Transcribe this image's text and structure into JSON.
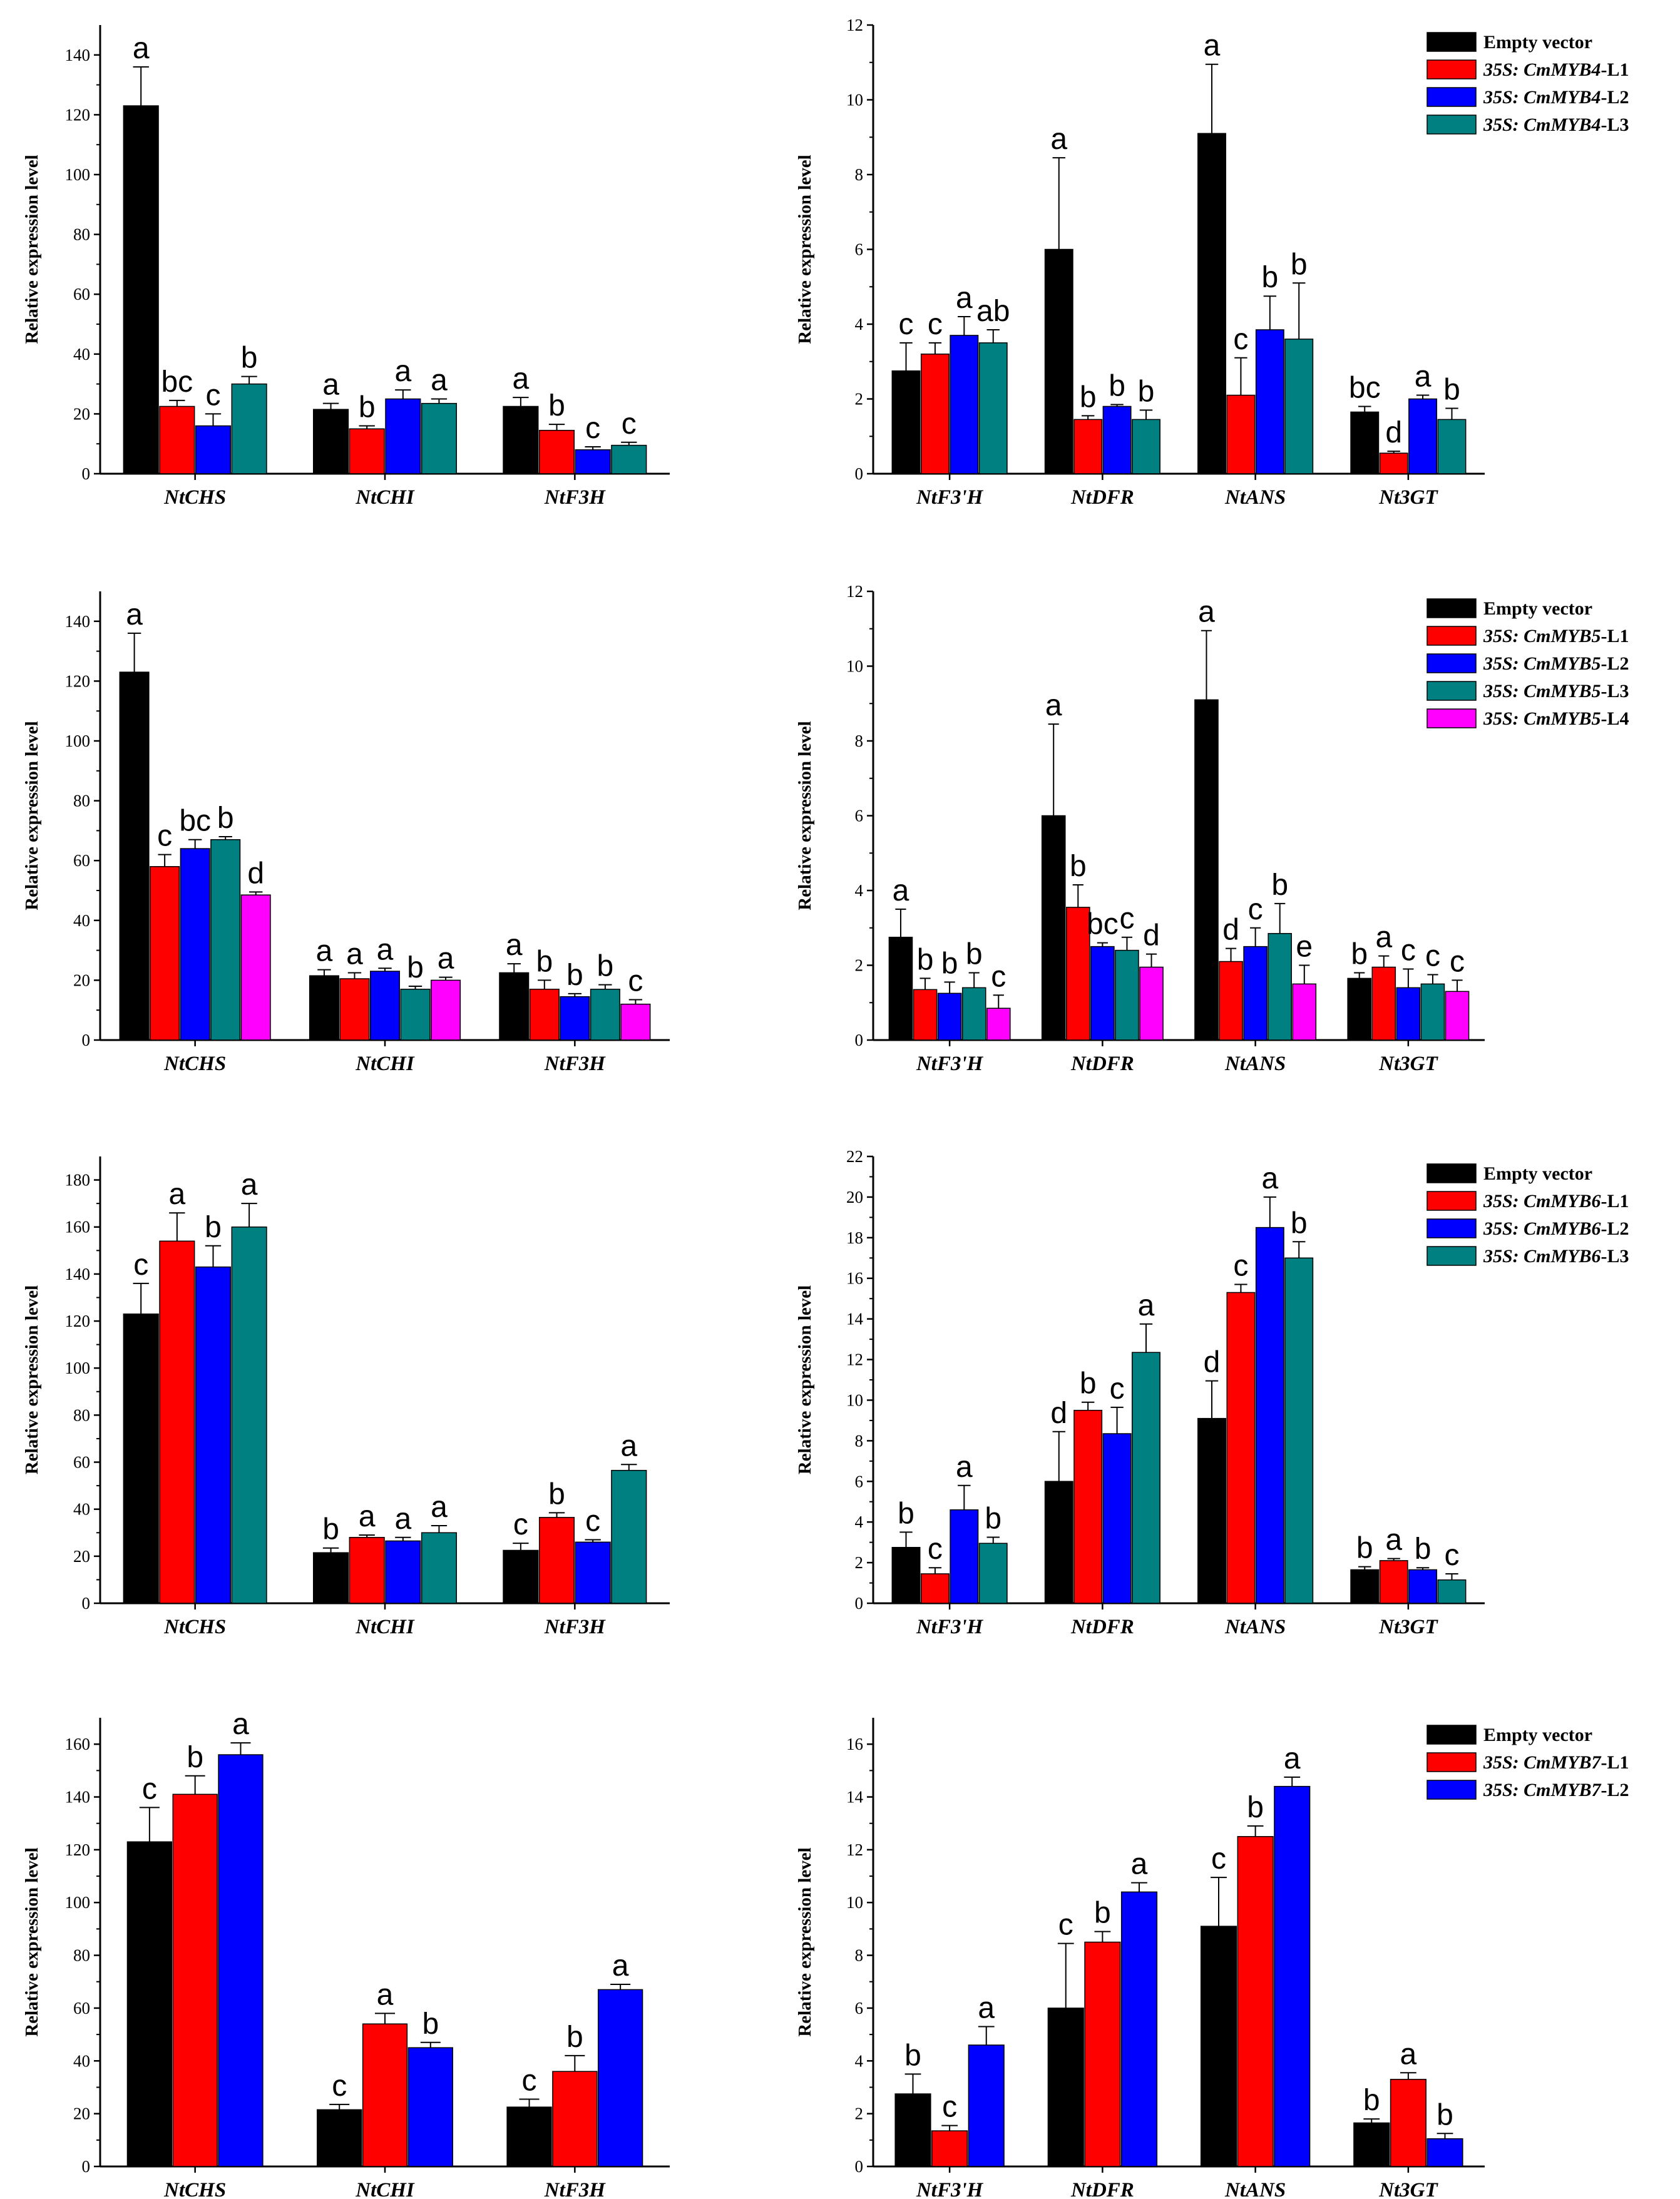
{
  "colors": {
    "empty": "#000000",
    "l1": "#ff0000",
    "l2": "#0000ff",
    "l3": "#008080",
    "l4": "#ff00ff"
  },
  "chart_data": [
    {
      "id": "p1",
      "type": "bar",
      "ylabel": "Relative expression level",
      "ylim": [
        0,
        150
      ],
      "yticks": [
        0,
        20,
        40,
        60,
        80,
        100,
        120,
        140
      ],
      "categories": [
        "NtCHS",
        "NtCHI",
        "NtF3H"
      ],
      "series": [
        {
          "color": "empty",
          "values": [
            123,
            21.5,
            22.5
          ],
          "errors": [
            13,
            2,
            3
          ],
          "letters": [
            "a",
            "a",
            "a"
          ]
        },
        {
          "color": "l1",
          "values": [
            22.5,
            15,
            14.5
          ],
          "errors": [
            2,
            1,
            2
          ],
          "letters": [
            "bc",
            "b",
            "b"
          ]
        },
        {
          "color": "l2",
          "values": [
            16,
            25,
            8
          ],
          "errors": [
            4,
            3,
            1
          ],
          "letters": [
            "c",
            "a",
            "c"
          ]
        },
        {
          "color": "l3",
          "values": [
            30,
            23.5,
            9.5
          ],
          "errors": [
            2.5,
            1.5,
            1
          ],
          "letters": [
            "b",
            "a",
            "c"
          ]
        }
      ]
    },
    {
      "id": "p2",
      "type": "bar",
      "ylabel": "Relative expression level",
      "ylim": [
        0,
        12
      ],
      "yticks": [
        0,
        2,
        4,
        6,
        8,
        10,
        12
      ],
      "categories": [
        "NtF3'H",
        "NtDFR",
        "NtANS",
        "Nt3GT"
      ],
      "series": [
        {
          "color": "empty",
          "values": [
            2.75,
            6.0,
            9.1,
            1.65
          ],
          "errors": [
            0.75,
            2.45,
            1.85,
            0.15
          ],
          "letters": [
            "c",
            "a",
            "a",
            "bc"
          ]
        },
        {
          "color": "l1",
          "values": [
            3.2,
            1.45,
            2.1,
            0.55
          ],
          "errors": [
            0.3,
            0.1,
            1.0,
            0.05
          ],
          "letters": [
            "c",
            "b",
            "c",
            "d"
          ]
        },
        {
          "color": "l2",
          "values": [
            3.7,
            1.8,
            3.85,
            2.0
          ],
          "errors": [
            0.5,
            0.05,
            0.9,
            0.1
          ],
          "letters": [
            "a",
            "b",
            "b",
            "a"
          ]
        },
        {
          "color": "l3",
          "values": [
            3.5,
            1.45,
            3.6,
            1.45
          ],
          "errors": [
            0.35,
            0.25,
            1.5,
            0.3
          ],
          "letters": [
            "ab",
            "b",
            "b",
            "b"
          ]
        }
      ],
      "legend": [
        {
          "color": "empty",
          "plain": "Empty vector"
        },
        {
          "color": "l1",
          "italic": "35S: CmMYB4",
          "plain": "-L1"
        },
        {
          "color": "l2",
          "italic": "35S: CmMYB4",
          "plain": "-L2"
        },
        {
          "color": "l3",
          "italic": "35S: CmMYB4",
          "plain": "-L3"
        }
      ]
    },
    {
      "id": "p3",
      "type": "bar",
      "ylabel": "Relative expression level",
      "ylim": [
        0,
        150
      ],
      "yticks": [
        0,
        20,
        40,
        60,
        80,
        100,
        120,
        140
      ],
      "categories": [
        "NtCHS",
        "NtCHI",
        "NtF3H"
      ],
      "series": [
        {
          "color": "empty",
          "values": [
            123,
            21.5,
            22.5
          ],
          "errors": [
            13,
            2,
            3
          ],
          "letters": [
            "a",
            "a",
            "a"
          ]
        },
        {
          "color": "l1",
          "values": [
            58,
            20.5,
            17
          ],
          "errors": [
            4,
            2,
            3
          ],
          "letters": [
            "c",
            "a",
            "b"
          ]
        },
        {
          "color": "l2",
          "values": [
            64,
            23,
            14.5
          ],
          "errors": [
            3,
            1,
            1
          ],
          "letters": [
            "bc",
            "a",
            "b"
          ]
        },
        {
          "color": "l3",
          "values": [
            67,
            17,
            17
          ],
          "errors": [
            1,
            1,
            1.5
          ],
          "letters": [
            "b",
            "b",
            "b"
          ]
        },
        {
          "color": "l4",
          "values": [
            48.5,
            20,
            12
          ],
          "errors": [
            1,
            1,
            1.5
          ],
          "letters": [
            "d",
            "a",
            "c"
          ]
        }
      ]
    },
    {
      "id": "p4",
      "type": "bar",
      "ylabel": "Relative expression level",
      "ylim": [
        0,
        12
      ],
      "yticks": [
        0,
        2,
        4,
        6,
        8,
        10,
        12
      ],
      "categories": [
        "NtF3'H",
        "NtDFR",
        "NtANS",
        "Nt3GT"
      ],
      "series": [
        {
          "color": "empty",
          "values": [
            2.75,
            6.0,
            9.1,
            1.65
          ],
          "errors": [
            0.75,
            2.45,
            1.85,
            0.15
          ],
          "letters": [
            "a",
            "a",
            "a",
            "b"
          ]
        },
        {
          "color": "l1",
          "values": [
            1.35,
            3.55,
            2.1,
            1.95
          ],
          "errors": [
            0.3,
            0.6,
            0.35,
            0.3
          ],
          "letters": [
            "b",
            "b",
            "d",
            "a"
          ]
        },
        {
          "color": "l2",
          "values": [
            1.25,
            2.5,
            2.5,
            1.4
          ],
          "errors": [
            0.3,
            0.1,
            0.5,
            0.5
          ],
          "letters": [
            "b",
            "bc",
            "c",
            "c"
          ]
        },
        {
          "color": "l3",
          "values": [
            1.4,
            2.4,
            2.85,
            1.5
          ],
          "errors": [
            0.4,
            0.35,
            0.8,
            0.25
          ],
          "letters": [
            "b",
            "c",
            "b",
            "c"
          ]
        },
        {
          "color": "l4",
          "values": [
            0.85,
            1.95,
            1.5,
            1.3
          ],
          "errors": [
            0.35,
            0.35,
            0.5,
            0.3
          ],
          "letters": [
            "c",
            "d",
            "e",
            "c"
          ]
        }
      ],
      "legend": [
        {
          "color": "empty",
          "plain": "Empty vector"
        },
        {
          "color": "l1",
          "italic": "35S: CmMYB5",
          "plain": "-L1"
        },
        {
          "color": "l2",
          "italic": "35S: CmMYB5",
          "plain": "-L2"
        },
        {
          "color": "l3",
          "italic": "35S: CmMYB5",
          "plain": "-L3"
        },
        {
          "color": "l4",
          "italic": "35S: CmMYB5",
          "plain": "-L4"
        }
      ]
    },
    {
      "id": "p5",
      "type": "bar",
      "ylabel": "Relative expression level",
      "ylim": [
        0,
        190
      ],
      "yticks": [
        0,
        20,
        40,
        60,
        80,
        100,
        120,
        140,
        160,
        180
      ],
      "categories": [
        "NtCHS",
        "NtCHI",
        "NtF3H"
      ],
      "series": [
        {
          "color": "empty",
          "values": [
            123,
            21.5,
            22.5
          ],
          "errors": [
            13,
            2,
            3
          ],
          "letters": [
            "c",
            "b",
            "c"
          ]
        },
        {
          "color": "l1",
          "values": [
            154,
            28,
            36.5
          ],
          "errors": [
            12,
            1,
            2
          ],
          "letters": [
            "a",
            "a",
            "b"
          ]
        },
        {
          "color": "l2",
          "values": [
            143,
            26.5,
            26
          ],
          "errors": [
            9,
            1.5,
            1
          ],
          "letters": [
            "b",
            "a",
            "c"
          ]
        },
        {
          "color": "l3",
          "values": [
            160,
            30,
            56.5
          ],
          "errors": [
            10,
            3,
            2.5
          ],
          "letters": [
            "a",
            "a",
            "a"
          ]
        }
      ]
    },
    {
      "id": "p6",
      "type": "bar",
      "ylabel": "Relative expression level",
      "ylim": [
        0,
        22
      ],
      "yticks": [
        0,
        2,
        4,
        6,
        8,
        10,
        12,
        14,
        16,
        18,
        20,
        22
      ],
      "categories": [
        "NtF3'H",
        "NtDFR",
        "NtANS",
        "Nt3GT"
      ],
      "series": [
        {
          "color": "empty",
          "values": [
            2.75,
            6.0,
            9.1,
            1.65
          ],
          "errors": [
            0.75,
            2.45,
            1.85,
            0.15
          ],
          "letters": [
            "b",
            "d",
            "d",
            "b"
          ]
        },
        {
          "color": "l1",
          "values": [
            1.45,
            9.5,
            15.3,
            2.1
          ],
          "errors": [
            0.3,
            0.4,
            0.4,
            0.1
          ],
          "letters": [
            "c",
            "b",
            "c",
            "a"
          ]
        },
        {
          "color": "l2",
          "values": [
            4.6,
            8.35,
            18.5,
            1.65
          ],
          "errors": [
            1.2,
            1.3,
            1.5,
            0.1
          ],
          "letters": [
            "a",
            "c",
            "a",
            "b"
          ]
        },
        {
          "color": "l3",
          "values": [
            2.95,
            12.35,
            17.0,
            1.15
          ],
          "errors": [
            0.3,
            1.4,
            0.8,
            0.3
          ],
          "letters": [
            "b",
            "a",
            "b",
            "c"
          ]
        }
      ],
      "legend": [
        {
          "color": "empty",
          "plain": "Empty vector"
        },
        {
          "color": "l1",
          "italic": "35S: CmMYB6",
          "plain": "-L1"
        },
        {
          "color": "l2",
          "italic": "35S: CmMYB6",
          "plain": "-L2"
        },
        {
          "color": "l3",
          "italic": "35S: CmMYB6",
          "plain": "-L3"
        }
      ]
    },
    {
      "id": "p7",
      "type": "bar",
      "ylabel": "Relative expression level",
      "ylim": [
        0,
        170
      ],
      "yticks": [
        0,
        20,
        40,
        60,
        80,
        100,
        120,
        140,
        160
      ],
      "categories": [
        "NtCHS",
        "NtCHI",
        "NtF3H"
      ],
      "series": [
        {
          "color": "empty",
          "values": [
            123,
            21.5,
            22.5
          ],
          "errors": [
            13,
            2,
            3
          ],
          "letters": [
            "c",
            "c",
            "c"
          ]
        },
        {
          "color": "l1",
          "values": [
            141,
            54,
            36
          ],
          "errors": [
            7,
            4,
            6
          ],
          "letters": [
            "b",
            "a",
            "b"
          ]
        },
        {
          "color": "l2",
          "values": [
            156,
            45,
            67
          ],
          "errors": [
            4.5,
            2,
            2
          ],
          "letters": [
            "a",
            "b",
            "a"
          ]
        }
      ]
    },
    {
      "id": "p8",
      "type": "bar",
      "ylabel": "Relative expression level",
      "ylim": [
        0,
        17
      ],
      "yticks": [
        0,
        2,
        4,
        6,
        8,
        10,
        12,
        14,
        16
      ],
      "categories": [
        "NtF3'H",
        "NtDFR",
        "NtANS",
        "Nt3GT"
      ],
      "series": [
        {
          "color": "empty",
          "values": [
            2.75,
            6.0,
            9.1,
            1.65
          ],
          "errors": [
            0.75,
            2.45,
            1.85,
            0.15
          ],
          "letters": [
            "b",
            "c",
            "c",
            "b"
          ]
        },
        {
          "color": "l1",
          "values": [
            1.35,
            8.5,
            12.5,
            3.3
          ],
          "errors": [
            0.2,
            0.4,
            0.4,
            0.25
          ],
          "letters": [
            "c",
            "b",
            "b",
            "a"
          ]
        },
        {
          "color": "l2",
          "values": [
            4.6,
            10.4,
            14.4,
            1.05
          ],
          "errors": [
            0.7,
            0.35,
            0.35,
            0.2
          ],
          "letters": [
            "a",
            "a",
            "a",
            "b"
          ]
        }
      ],
      "legend": [
        {
          "color": "empty",
          "plain": "Empty vector"
        },
        {
          "color": "l1",
          "italic": "35S: CmMYB7",
          "plain": "-L1"
        },
        {
          "color": "l2",
          "italic": "35S: CmMYB7",
          "plain": "-L2"
        }
      ]
    }
  ]
}
